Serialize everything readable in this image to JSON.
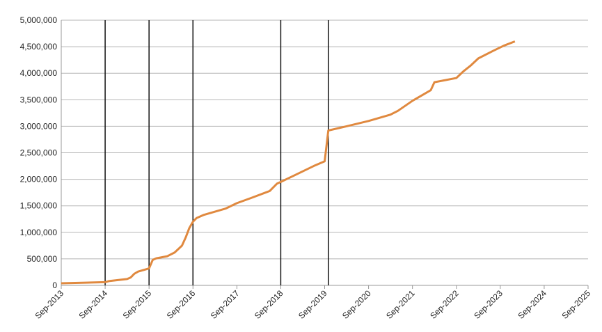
{
  "chart_data": {
    "type": "line",
    "x": [
      "2013-09",
      "2014-09",
      "2014-10",
      "2015-03",
      "2015-04",
      "2015-05",
      "2015-06",
      "2015-08",
      "2015-09",
      "2015-10",
      "2015-11",
      "2016-02",
      "2016-04",
      "2016-06",
      "2016-07",
      "2016-08",
      "2016-09",
      "2016-10",
      "2016-12",
      "2017-06",
      "2017-09",
      "2018-01",
      "2018-06",
      "2018-08",
      "2018-09",
      "2018-12",
      "2019-03",
      "2019-06",
      "2019-09",
      "2019-10",
      "2020-03",
      "2020-09",
      "2021-03",
      "2021-05",
      "2021-09",
      "2021-12",
      "2022-02",
      "2022-03",
      "2022-09",
      "2022-11",
      "2023-01",
      "2023-03",
      "2023-07",
      "2023-10",
      "2024-01"
    ],
    "series": [
      {
        "color": "#e0893f",
        "values": [
          40000,
          60000,
          80000,
          120000,
          150000,
          220000,
          260000,
          300000,
          320000,
          480000,
          510000,
          550000,
          620000,
          750000,
          900000,
          1080000,
          1200000,
          1270000,
          1330000,
          1450000,
          1550000,
          1650000,
          1780000,
          1920000,
          1950000,
          2050000,
          2150000,
          2250000,
          2340000,
          2920000,
          3000000,
          3100000,
          3220000,
          3290000,
          3480000,
          3600000,
          3680000,
          3830000,
          3910000,
          4040000,
          4150000,
          4280000,
          4420000,
          4520000,
          4600000
        ]
      }
    ],
    "xlim": [
      "2013-09",
      "2025-09"
    ],
    "xticks": [
      {
        "value": "2013-09",
        "label": "Sep-2013"
      },
      {
        "value": "2014-09",
        "label": "Sep-2014"
      },
      {
        "value": "2015-09",
        "label": "Sep-2015"
      },
      {
        "value": "2016-09",
        "label": "Sep-2016"
      },
      {
        "value": "2017-09",
        "label": "Sep-2017"
      },
      {
        "value": "2018-09",
        "label": "Sep-2018"
      },
      {
        "value": "2019-09",
        "label": "Sep-2019"
      },
      {
        "value": "2020-09",
        "label": "Sep-2020"
      },
      {
        "value": "2021-09",
        "label": "Sep-2021"
      },
      {
        "value": "2022-09",
        "label": "Sep-2022"
      },
      {
        "value": "2023-09",
        "label": "Sep-2023"
      },
      {
        "value": "2024-09",
        "label": "Sep-2024"
      },
      {
        "value": "2025-09",
        "label": "Sep-2025"
      }
    ],
    "ylim": [
      0,
      5000000
    ],
    "yticks": [
      0,
      {
        "value": 500000,
        "label": "500,000"
      },
      {
        "value": 1000000,
        "label": "1,000,000"
      },
      {
        "value": 1500000,
        "label": "1,500,000"
      },
      {
        "value": 2000000,
        "label": "2,000,000"
      },
      {
        "value": 2500000,
        "label": "2,500,000"
      },
      {
        "value": 3000000,
        "label": "3,000,000"
      },
      {
        "value": 3500000,
        "label": "3,500,000"
      },
      {
        "value": 4000000,
        "label": "4,000,000"
      },
      {
        "value": 4500000,
        "label": "4,500,000"
      },
      {
        "value": 5000000,
        "label": "5,000,000"
      }
    ],
    "grid": true,
    "vertical_lines": [
      "2014-09",
      "2015-09",
      "2016-09",
      "2018-09",
      "2019-10"
    ]
  }
}
